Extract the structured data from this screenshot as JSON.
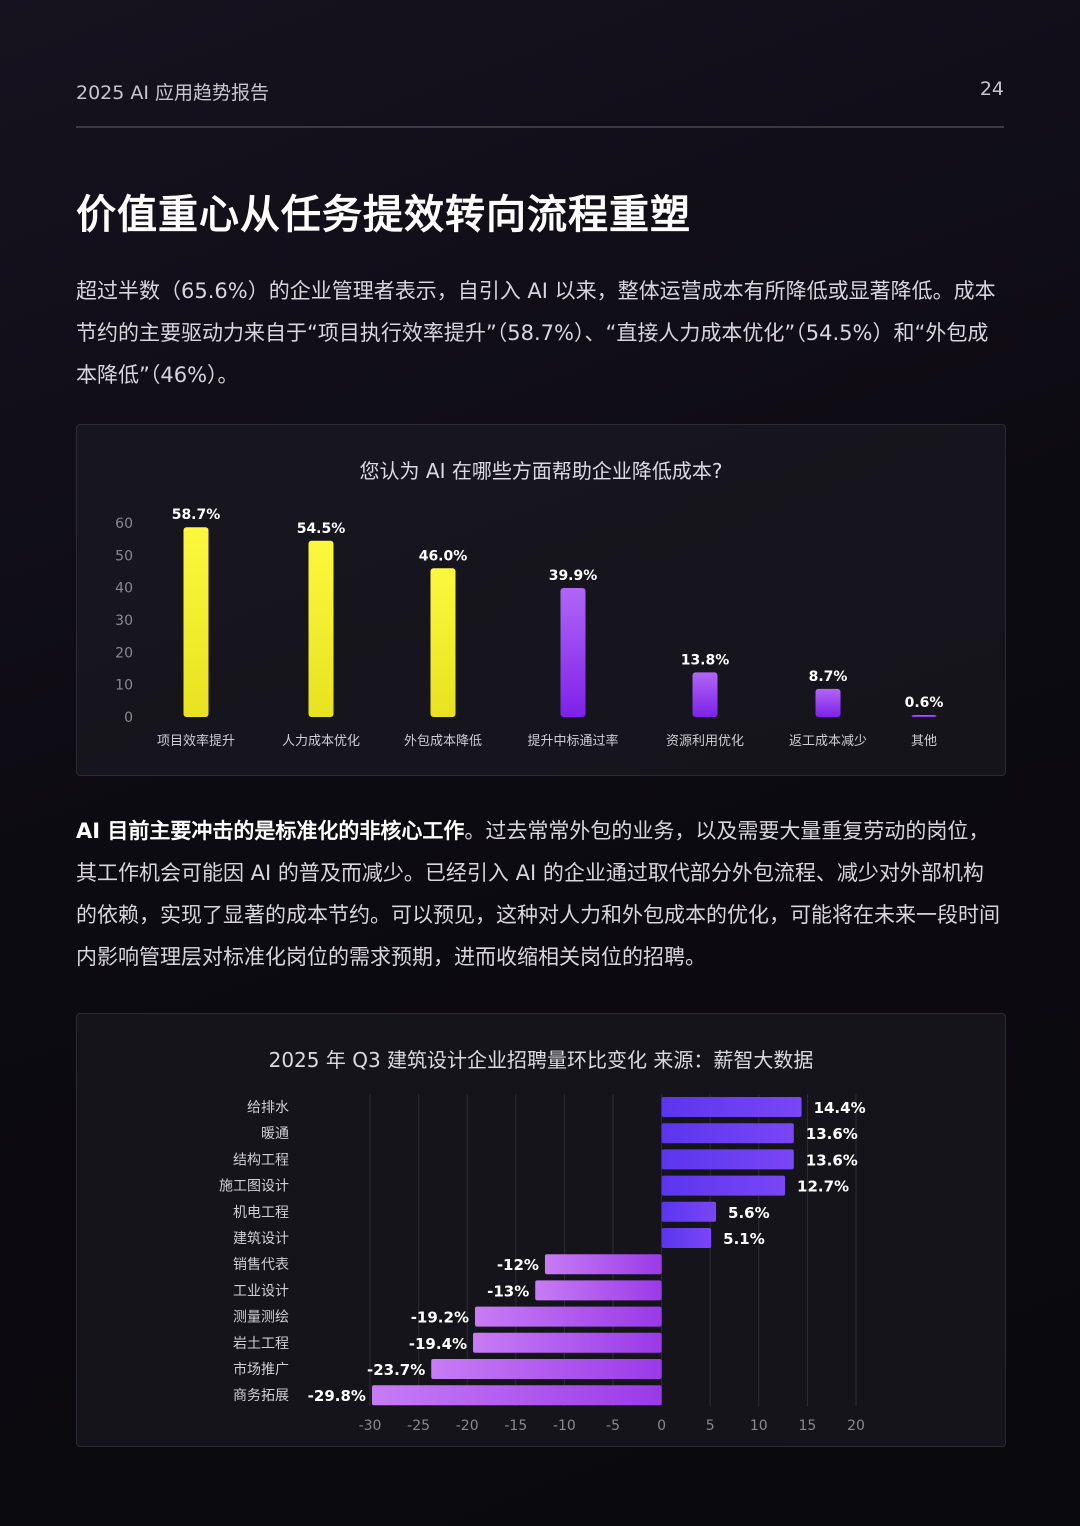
{
  "header": {
    "report_title": "2025 AI 应用趋势报告",
    "page_number": "24"
  },
  "main": {
    "title": "价值重心从任务提效转向流程重塑",
    "paragraph1": "超过半数（65.6%）的企业管理者表示，自引入 AI 以来，整体运营成本有所降低或显著降低。成本节约的主要驱动力来自于“项目执行效率提升”（58.7%）、“直接人力成本优化”（54.5%）和“外包成本降低”（46%）。",
    "paragraph2_bold": "AI 目前主要冲击的是标准化的非核心工作",
    "paragraph2_rest": "。过去常常外包的业务，以及需要大量重复劳动的岗位，其工作机会可能因 AI 的普及而减少。已经引入 AI 的企业通过取代部分外包流程、减少对外部机构的依赖，实现了显著的成本节约。可以预见，这种对人力和外包成本的优化，可能将在未来一段时间内影响管理层对标准化岗位的需求预期，进而收缩相关岗位的招聘。"
  },
  "chart_data": [
    {
      "type": "bar",
      "title": "您认为 AI 在哪些方面帮助企业降低成本?",
      "categories": [
        "项目效率提升",
        "人力成本优化",
        "外包成本降低",
        "提升中标通过率",
        "资源利用优化",
        "返工成本减少",
        "其他"
      ],
      "values": [
        58.7,
        54.5,
        46.0,
        39.9,
        13.8,
        8.7,
        0.6
      ],
      "data_labels": [
        "58.7%",
        "54.5%",
        "46.0%",
        "39.9%",
        "13.8%",
        "8.7%",
        "0.6%"
      ],
      "ylim": [
        0,
        60
      ],
      "yticks": [
        0,
        10,
        20,
        30,
        40,
        50,
        60
      ],
      "colors": [
        "#f5f234",
        "#f5f234",
        "#f5f234",
        "#9a3cf0",
        "#9a3cf0",
        "#9a3cf0",
        "#9a3cf0"
      ],
      "grid": false
    },
    {
      "type": "bar",
      "orientation": "horizontal",
      "title": "2025 年 Q3 建筑设计企业招聘量环比变化 来源：薪智大数据",
      "categories": [
        "给排水",
        "暖通",
        "结构工程",
        "施工图设计",
        "机电工程",
        "建筑设计",
        "销售代表",
        "工业设计",
        "测量测绘",
        "岩土工程",
        "市场推广",
        "商务拓展"
      ],
      "values": [
        14.4,
        13.6,
        13.6,
        12.7,
        5.6,
        5.1,
        -12,
        -13,
        -19.2,
        -19.4,
        -23.7,
        -29.8
      ],
      "data_labels": [
        "14.4%",
        "13.6%",
        "13.6%",
        "12.7%",
        "5.6%",
        "5.1%",
        "-12%",
        "-13%",
        "-19.2%",
        "-19.4%",
        "-23.7%",
        "-29.8%"
      ],
      "xlim": [
        -30,
        20
      ],
      "xticks": [
        -30,
        -25,
        -20,
        -15,
        -10,
        -5,
        0,
        5,
        10,
        15,
        20
      ],
      "colors": {
        "positive": "#6a3cf2",
        "negative": "#b05cf0"
      },
      "grid": true
    }
  ]
}
